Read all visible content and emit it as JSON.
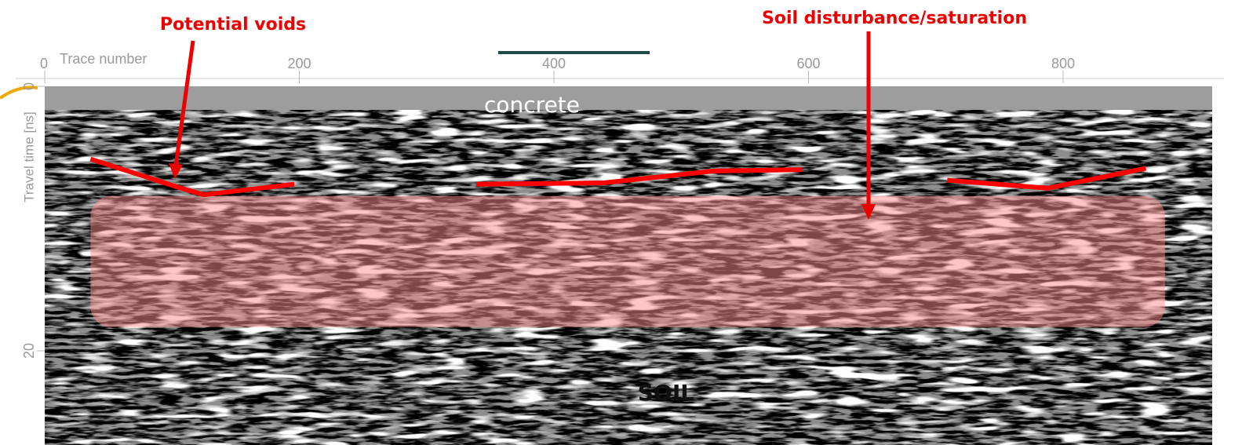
{
  "chart_data": {
    "type": "radargram",
    "x_label": "Trace number",
    "y_label": "Travel time [ns]",
    "xlim": [
      0,
      920
    ],
    "xticks": [
      0,
      200,
      400,
      600,
      800
    ],
    "ylim": [
      0,
      27
    ],
    "yticks": [
      0,
      20
    ],
    "annotations": [
      "Potential voids",
      "Soil disturbance/saturation",
      "concrete",
      "SOIL"
    ],
    "region": {
      "x": [
        36,
        880
      ],
      "y": [
        8.3,
        18.2
      ],
      "color": "#ff8c8c"
    },
    "series": [
      {
        "color": "#ff0000",
        "x": [
          36,
          107,
          125,
          196
        ],
        "values": [
          5.5,
          7.7,
          8.2,
          7.4
        ]
      },
      {
        "color": "#ff0000",
        "x": [
          339,
          439,
          526,
          595
        ],
        "values": [
          7.4,
          7.3,
          6.4,
          6.3
        ]
      },
      {
        "color": "#ff0000",
        "x": [
          709,
          788,
          865
        ],
        "values": [
          7.1,
          7.7,
          6.2
        ]
      }
    ]
  }
}
